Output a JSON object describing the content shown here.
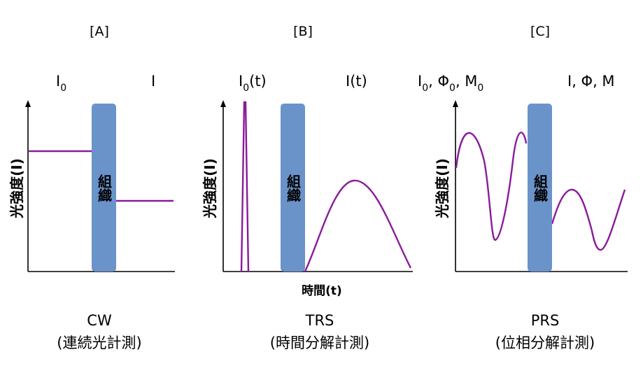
{
  "panels": [
    {
      "label": "[A]",
      "input_label": "I",
      "input_sub": "0",
      "output_label": "I",
      "ylabel": "光強度(I)",
      "tissue": "組織",
      "title": "CW",
      "subtitle": "(連続光計測)"
    },
    {
      "label": "[B]",
      "input_label": "I",
      "input_sub": "0",
      "input_suffix": "(t)",
      "output_label": "I(t)",
      "ylabel": "光強度(I)",
      "xlabel": "時間(t)",
      "tissue": "組織",
      "title": "TRS",
      "subtitle": "(時間分解計測)"
    },
    {
      "label": "[C]",
      "input_label_parts": [
        "I",
        "0",
        ", Φ",
        "0",
        ", M",
        "0"
      ],
      "output_label": "I, Φ, M",
      "ylabel": "光強度(I)",
      "tissue": "組織",
      "title": "PRS",
      "subtitle": "(位相分解計測)"
    }
  ],
  "colors": {
    "signal": "#8a1a9b",
    "tissue_block": "#6a93c9",
    "axis": "#000000"
  }
}
